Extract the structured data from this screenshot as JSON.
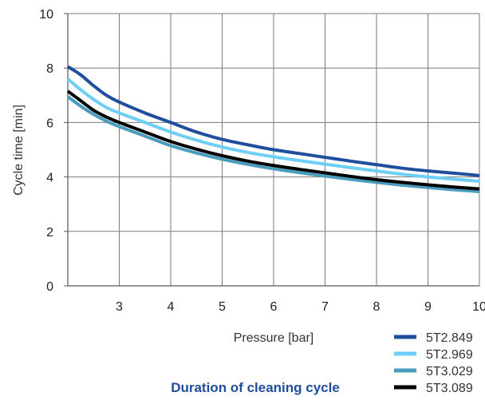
{
  "chart_data": {
    "type": "line",
    "xlabel": "Pressure [bar]",
    "ylabel": "Cycle time [min]",
    "xlim": [
      2,
      10
    ],
    "ylim": [
      0,
      10
    ],
    "x_ticks": [
      3,
      4,
      5,
      6,
      7,
      8,
      9,
      10
    ],
    "y_ticks": [
      0,
      2,
      4,
      6,
      8,
      10
    ],
    "grid": true,
    "legend_position": "bottom-right",
    "caption": "Duration of cleaning cycle",
    "series": [
      {
        "name": "5T2.849",
        "color": "#1f4e9c",
        "x": [
          2,
          2.25,
          2.5,
          2.75,
          3,
          3.5,
          4,
          4.5,
          5,
          5.5,
          6,
          6.5,
          7,
          7.5,
          8,
          8.5,
          9,
          9.5,
          10
        ],
        "y": [
          8.05,
          7.75,
          7.35,
          7.0,
          6.75,
          6.35,
          6.0,
          5.65,
          5.38,
          5.18,
          5.0,
          4.86,
          4.72,
          4.58,
          4.45,
          4.32,
          4.22,
          4.14,
          4.05
        ]
      },
      {
        "name": "5T2.969",
        "color": "#6dcff6",
        "x": [
          2,
          2.25,
          2.5,
          2.75,
          3,
          3.5,
          4,
          4.5,
          5,
          5.5,
          6,
          6.5,
          7,
          7.5,
          8,
          8.5,
          9,
          9.5,
          10
        ],
        "y": [
          7.6,
          7.2,
          6.85,
          6.55,
          6.35,
          6.0,
          5.65,
          5.35,
          5.1,
          4.9,
          4.74,
          4.6,
          4.47,
          4.34,
          4.22,
          4.1,
          4.0,
          3.92,
          3.84
        ]
      },
      {
        "name": "5T3.029",
        "color": "#4a9cbf",
        "x": [
          2,
          2.25,
          2.5,
          2.75,
          3,
          3.5,
          4,
          4.5,
          5,
          5.5,
          6,
          6.5,
          7,
          7.5,
          8,
          8.5,
          9,
          9.5,
          10
        ],
        "y": [
          6.95,
          6.6,
          6.3,
          6.05,
          5.85,
          5.5,
          5.15,
          4.88,
          4.65,
          4.46,
          4.3,
          4.16,
          4.03,
          3.91,
          3.8,
          3.7,
          3.61,
          3.53,
          3.46
        ]
      },
      {
        "name": "5T3.089",
        "color": "#000000",
        "x": [
          2,
          2.25,
          2.5,
          2.75,
          3,
          3.5,
          4,
          4.5,
          5,
          5.5,
          6,
          6.5,
          7,
          7.5,
          8,
          8.5,
          9,
          9.5,
          10
        ],
        "y": [
          7.15,
          6.8,
          6.45,
          6.2,
          6.0,
          5.65,
          5.3,
          5.02,
          4.78,
          4.58,
          4.42,
          4.28,
          4.15,
          4.02,
          3.9,
          3.8,
          3.71,
          3.63,
          3.56
        ]
      }
    ]
  }
}
